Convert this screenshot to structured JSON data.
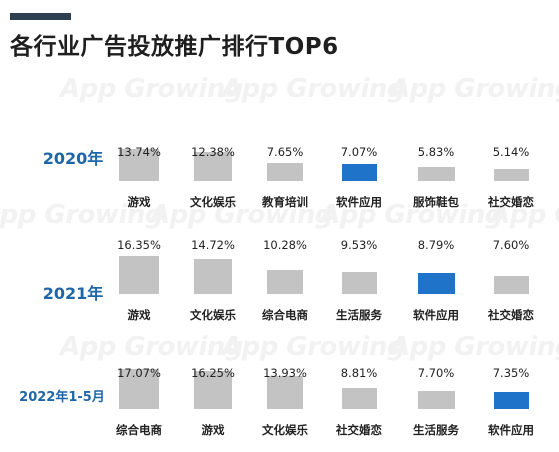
{
  "title": "各行业广告投放推广排行TOP6",
  "watermark": "App Growing",
  "colors": {
    "bar": "#c3c3c3",
    "highlight": "#1f74c9",
    "year_label": "#1f66a8",
    "header_bar": "#2f4050"
  },
  "chart_data": [
    {
      "type": "bar",
      "label": "2020年",
      "categories": [
        "游戏",
        "文化娱乐",
        "教育培训",
        "软件应用",
        "服饰鞋包",
        "社交婚恋"
      ],
      "values": [
        13.74,
        12.38,
        7.65,
        7.07,
        5.83,
        5.14
      ],
      "value_labels": [
        "13.74%",
        "12.38%",
        "7.65%",
        "7.07%",
        "5.83%",
        "5.14%"
      ],
      "highlight_index": 3
    },
    {
      "type": "bar",
      "label": "2021年",
      "categories": [
        "游戏",
        "文化娱乐",
        "综合电商",
        "生活服务",
        "软件应用",
        "社交婚恋"
      ],
      "values": [
        16.35,
        14.72,
        10.28,
        9.53,
        8.79,
        7.6
      ],
      "value_labels": [
        "16.35%",
        "14.72%",
        "10.28%",
        "9.53%",
        "8.79%",
        "7.60%"
      ],
      "highlight_index": 4
    },
    {
      "type": "bar",
      "label": "2022年1-5月",
      "categories": [
        "综合电商",
        "游戏",
        "文化娱乐",
        "社交婚恋",
        "生活服务",
        "软件应用"
      ],
      "values": [
        17.07,
        16.25,
        13.93,
        8.81,
        7.7,
        7.35
      ],
      "value_labels": [
        "17.07%",
        "16.25%",
        "13.93%",
        "8.81%",
        "7.70%",
        "7.35%"
      ],
      "highlight_index": 5
    }
  ]
}
